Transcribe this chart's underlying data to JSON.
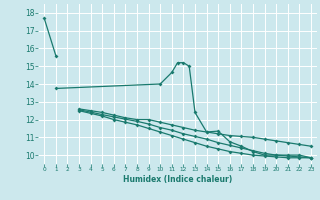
{
  "background_color": "#cce8ed",
  "grid_color": "#ffffff",
  "line_color": "#1a7a6e",
  "xlabel": "Humidex (Indice chaleur)",
  "xlim": [
    -0.5,
    23.5
  ],
  "ylim": [
    9.5,
    18.5
  ],
  "yticks": [
    10,
    11,
    12,
    13,
    14,
    15,
    16,
    17,
    18
  ],
  "xticks": [
    0,
    1,
    2,
    3,
    4,
    5,
    6,
    7,
    8,
    9,
    10,
    11,
    12,
    13,
    14,
    15,
    16,
    17,
    18,
    19,
    20,
    21,
    22,
    23
  ],
  "series1_x": [
    0,
    1
  ],
  "series1_y": [
    17.7,
    15.6
  ],
  "series2_x": [
    1,
    10,
    11,
    11.5,
    12,
    12.5,
    13,
    14,
    15,
    16,
    17,
    18,
    19,
    20,
    21,
    22,
    23
  ],
  "series2_y": [
    13.75,
    14.0,
    14.65,
    15.2,
    15.2,
    15.0,
    12.4,
    11.3,
    11.35,
    10.75,
    10.5,
    10.2,
    10.0,
    10.0,
    10.0,
    10.0,
    9.85
  ],
  "series3_x": [
    3,
    4,
    5,
    6,
    7,
    8,
    9,
    10,
    11,
    12,
    13,
    14,
    15,
    16,
    17,
    18,
    19,
    20,
    21,
    22,
    23
  ],
  "series3_y": [
    12.6,
    12.5,
    12.4,
    12.25,
    12.1,
    12.0,
    12.0,
    11.85,
    11.7,
    11.55,
    11.4,
    11.3,
    11.2,
    11.1,
    11.05,
    11.0,
    10.9,
    10.8,
    10.7,
    10.6,
    10.5
  ],
  "series4_x": [
    3,
    4,
    5,
    6,
    7,
    8,
    9,
    10,
    11,
    12,
    13,
    14,
    15,
    16,
    17,
    18,
    19,
    20,
    21,
    22,
    23
  ],
  "series4_y": [
    12.55,
    12.42,
    12.28,
    12.15,
    12.02,
    11.9,
    11.75,
    11.55,
    11.4,
    11.2,
    11.05,
    10.9,
    10.7,
    10.55,
    10.4,
    10.25,
    10.1,
    10.0,
    9.95,
    9.9,
    9.85
  ],
  "series5_x": [
    3,
    4,
    5,
    6,
    7,
    8,
    9,
    10,
    11,
    12,
    13,
    14,
    15,
    16,
    17,
    18,
    19,
    20,
    21,
    22,
    23
  ],
  "series5_y": [
    12.5,
    12.35,
    12.2,
    12.0,
    11.85,
    11.7,
    11.5,
    11.3,
    11.1,
    10.9,
    10.7,
    10.5,
    10.35,
    10.2,
    10.1,
    10.0,
    9.95,
    9.9,
    9.85,
    9.85,
    9.85
  ]
}
